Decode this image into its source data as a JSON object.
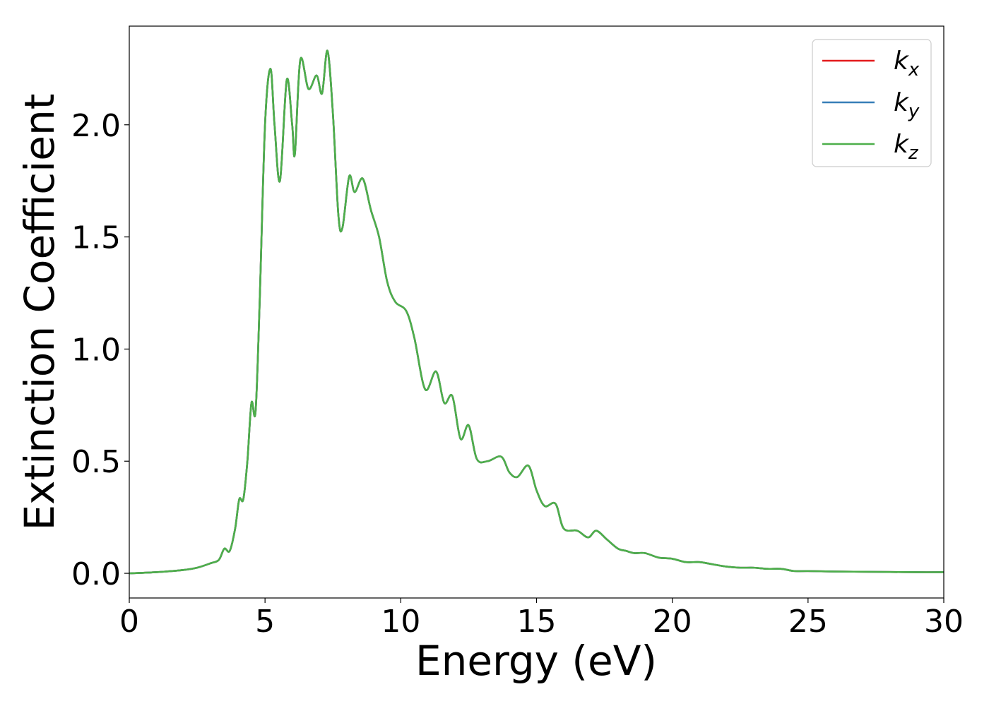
{
  "chart_data": {
    "type": "line",
    "title": "",
    "xlabel": "Energy (eV)",
    "ylabel": "Extinction Coefficient",
    "xlim": [
      0,
      30
    ],
    "ylim": [
      -0.11,
      2.44
    ],
    "xticks": [
      0,
      5,
      10,
      15,
      20,
      25,
      30
    ],
    "xtick_labels": [
      "0",
      "5",
      "10",
      "15",
      "20",
      "25",
      "30"
    ],
    "yticks": [
      0.0,
      0.5,
      1.0,
      1.5,
      2.0
    ],
    "ytick_labels": [
      "0.0",
      "0.5",
      "1.0",
      "1.5",
      "2.0"
    ],
    "grid": false,
    "legend_position": "top-right",
    "x": [
      0,
      1,
      2,
      2.5,
      3,
      3.3,
      3.5,
      3.7,
      3.9,
      4.05,
      4.2,
      4.35,
      4.5,
      4.65,
      4.8,
      5.0,
      5.2,
      5.35,
      5.55,
      5.8,
      6.0,
      6.1,
      6.3,
      6.6,
      6.9,
      7.1,
      7.3,
      7.5,
      7.7,
      7.85,
      8.1,
      8.3,
      8.6,
      8.9,
      9.2,
      9.5,
      9.8,
      10.2,
      10.5,
      10.9,
      11.3,
      11.6,
      11.9,
      12.2,
      12.5,
      12.8,
      13.2,
      13.7,
      14.0,
      14.3,
      14.7,
      15.0,
      15.3,
      15.7,
      16.0,
      16.5,
      16.9,
      17.2,
      17.6,
      18.0,
      18.3,
      18.6,
      19.0,
      19.5,
      20.0,
      20.5,
      21.0,
      21.5,
      22.0,
      22.5,
      23.0,
      23.5,
      24.0,
      24.5,
      25.0,
      26.0,
      27.0,
      28.0,
      29.0,
      30.0
    ],
    "series": [
      {
        "name": "k_x",
        "color": "#e41a1c",
        "values": [
          0.0,
          0.005,
          0.015,
          0.025,
          0.045,
          0.06,
          0.11,
          0.1,
          0.2,
          0.33,
          0.33,
          0.5,
          0.76,
          0.72,
          1.2,
          2.0,
          2.25,
          2.0,
          1.75,
          2.2,
          2.0,
          1.87,
          2.29,
          2.16,
          2.22,
          2.14,
          2.33,
          2.05,
          1.6,
          1.54,
          1.77,
          1.7,
          1.76,
          1.62,
          1.5,
          1.3,
          1.21,
          1.17,
          1.05,
          0.82,
          0.9,
          0.76,
          0.79,
          0.6,
          0.66,
          0.51,
          0.5,
          0.52,
          0.45,
          0.43,
          0.48,
          0.37,
          0.3,
          0.31,
          0.2,
          0.19,
          0.16,
          0.19,
          0.15,
          0.11,
          0.1,
          0.09,
          0.09,
          0.07,
          0.065,
          0.05,
          0.05,
          0.04,
          0.03,
          0.025,
          0.025,
          0.02,
          0.02,
          0.01,
          0.01,
          0.008,
          0.007,
          0.006,
          0.005,
          0.005
        ]
      },
      {
        "name": "k_y",
        "color": "#377eb8",
        "values": [
          0.0,
          0.005,
          0.015,
          0.025,
          0.045,
          0.06,
          0.11,
          0.1,
          0.2,
          0.33,
          0.33,
          0.5,
          0.76,
          0.72,
          1.2,
          2.0,
          2.25,
          2.0,
          1.75,
          2.2,
          2.0,
          1.87,
          2.29,
          2.16,
          2.22,
          2.14,
          2.33,
          2.05,
          1.6,
          1.54,
          1.77,
          1.7,
          1.76,
          1.62,
          1.5,
          1.3,
          1.21,
          1.17,
          1.05,
          0.82,
          0.9,
          0.76,
          0.79,
          0.6,
          0.66,
          0.51,
          0.5,
          0.52,
          0.45,
          0.43,
          0.48,
          0.37,
          0.3,
          0.31,
          0.2,
          0.19,
          0.16,
          0.19,
          0.15,
          0.11,
          0.1,
          0.09,
          0.09,
          0.07,
          0.065,
          0.05,
          0.05,
          0.04,
          0.03,
          0.025,
          0.025,
          0.02,
          0.02,
          0.01,
          0.01,
          0.008,
          0.007,
          0.006,
          0.005,
          0.005
        ]
      },
      {
        "name": "k_z",
        "color": "#4daf4a",
        "values": [
          0.0,
          0.005,
          0.015,
          0.025,
          0.045,
          0.06,
          0.11,
          0.1,
          0.2,
          0.33,
          0.33,
          0.5,
          0.76,
          0.72,
          1.2,
          2.0,
          2.25,
          2.0,
          1.75,
          2.2,
          2.0,
          1.87,
          2.29,
          2.16,
          2.22,
          2.14,
          2.33,
          2.05,
          1.6,
          1.54,
          1.77,
          1.7,
          1.76,
          1.62,
          1.5,
          1.3,
          1.21,
          1.17,
          1.05,
          0.82,
          0.9,
          0.76,
          0.79,
          0.6,
          0.66,
          0.51,
          0.5,
          0.52,
          0.45,
          0.43,
          0.48,
          0.37,
          0.3,
          0.31,
          0.2,
          0.19,
          0.16,
          0.19,
          0.15,
          0.11,
          0.1,
          0.09,
          0.09,
          0.07,
          0.065,
          0.05,
          0.05,
          0.04,
          0.03,
          0.025,
          0.025,
          0.02,
          0.02,
          0.01,
          0.01,
          0.008,
          0.007,
          0.006,
          0.005,
          0.005
        ]
      }
    ],
    "legend": [
      {
        "base": "k",
        "sub": "x",
        "color": "#e41a1c"
      },
      {
        "base": "k",
        "sub": "y",
        "color": "#377eb8"
      },
      {
        "base": "k",
        "sub": "z",
        "color": "#4daf4a"
      }
    ]
  }
}
